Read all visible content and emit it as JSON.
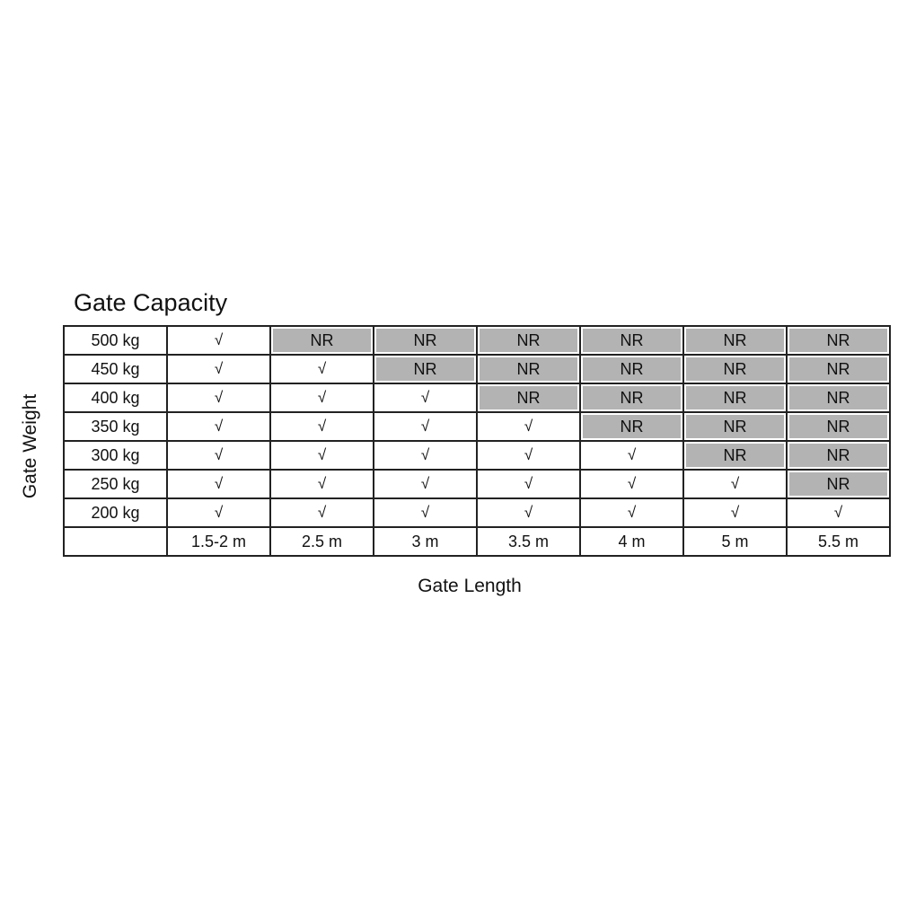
{
  "chart_data": {
    "type": "table",
    "title": "Gate Capacity",
    "xlabel": "Gate Length",
    "ylabel": "Gate Weight",
    "columns": [
      "1.5-2 m",
      "2.5 m",
      "3 m",
      "3.5 m",
      "4 m",
      "5 m",
      "5.5 m"
    ],
    "rows": [
      {
        "label": "500 kg",
        "values": [
          "√",
          "NR",
          "NR",
          "NR",
          "NR",
          "NR",
          "NR"
        ]
      },
      {
        "label": "450 kg",
        "values": [
          "√",
          "√",
          "NR",
          "NR",
          "NR",
          "NR",
          "NR"
        ]
      },
      {
        "label": "400 kg",
        "values": [
          "√",
          "√",
          "√",
          "NR",
          "NR",
          "NR",
          "NR"
        ]
      },
      {
        "label": "350 kg",
        "values": [
          "√",
          "√",
          "√",
          "√",
          "NR",
          "NR",
          "NR"
        ]
      },
      {
        "label": "300 kg",
        "values": [
          "√",
          "√",
          "√",
          "√",
          "√",
          "NR",
          "NR"
        ]
      },
      {
        "label": "250 kg",
        "values": [
          "√",
          "√",
          "√",
          "√",
          "√",
          "√",
          "NR"
        ]
      },
      {
        "label": "200 kg",
        "values": [
          "√",
          "√",
          "√",
          "√",
          "√",
          "√",
          "√"
        ]
      }
    ],
    "colors": {
      "nr_fill": "#b3b3b3",
      "border": "#222222"
    }
  }
}
